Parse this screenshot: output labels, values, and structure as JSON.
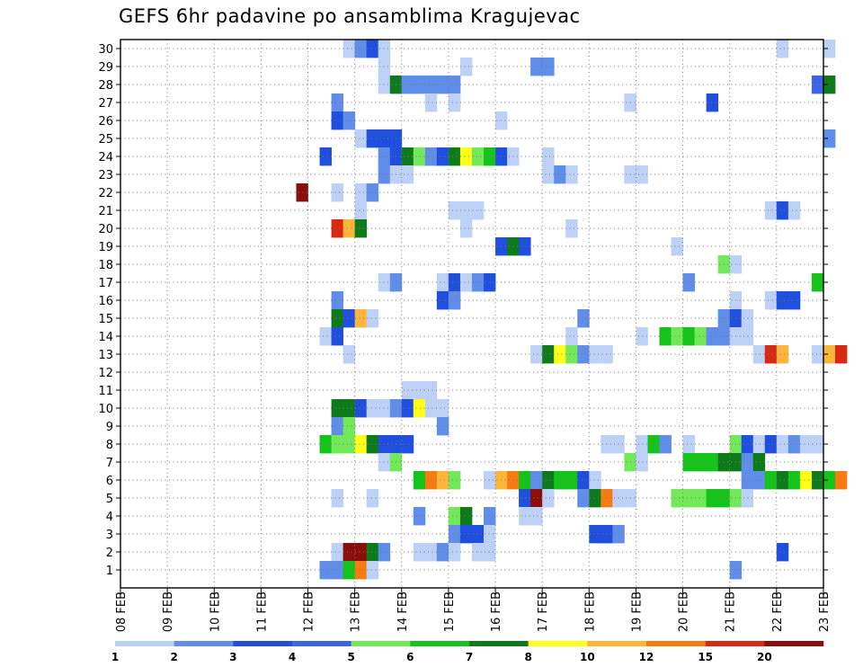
{
  "chart_data": {
    "type": "heatmap",
    "title": "GEFS 6hr padavine po ansamblima Kragujevac",
    "xlabel": "",
    "ylabel": "",
    "x_ticks": [
      "08 FEB",
      "09 FEB",
      "10 FEB",
      "11 FEB",
      "12 FEB",
      "13 FEB",
      "14 FEB",
      "15 FEB",
      "16 FEB",
      "17 FEB",
      "18 FEB",
      "19 FEB",
      "20 FEB",
      "21 FEB",
      "22 FEB",
      "23 FEB"
    ],
    "y_ticks": [
      "1",
      "2",
      "3",
      "4",
      "5",
      "6",
      "7",
      "8",
      "9",
      "10",
      "11",
      "12",
      "13",
      "14",
      "15",
      "16",
      "17",
      "18",
      "19",
      "20",
      "21",
      "22",
      "23",
      "24",
      "25",
      "26",
      "27",
      "28",
      "29",
      "30"
    ],
    "x_step_hours": 6,
    "ensemble_members": 30,
    "grid": true,
    "colorbar": {
      "position": "bottom",
      "labels": [
        "1",
        "2",
        "3",
        "4",
        "5",
        "6",
        "7",
        "8",
        "10",
        "12",
        "15",
        "20"
      ],
      "colors": [
        "#bdd0f6",
        "#5f8de8",
        "#1f4fdc",
        "#3a66e4",
        "#72e85a",
        "#16c31a",
        "#0f7a1c",
        "#ffff1a",
        "#ffb43c",
        "#f57c12",
        "#d62a12",
        "#8a0f0a"
      ]
    },
    "cells": [
      {
        "m": 30,
        "t": "2/12 18",
        "c": 0
      },
      {
        "m": 30,
        "t": "2/13 00",
        "c": 1
      },
      {
        "m": 30,
        "t": "2/13 06",
        "c": 2
      },
      {
        "m": 30,
        "t": "2/13 12",
        "c": 0
      },
      {
        "m": 30,
        "t": "2/22 00",
        "c": 0
      },
      {
        "m": 30,
        "t": "2/23 00",
        "c": 0
      },
      {
        "m": 29,
        "t": "2/13 12",
        "c": 0
      },
      {
        "m": 29,
        "t": "2/15 06",
        "c": 0
      },
      {
        "m": 29,
        "t": "2/16 18",
        "c": 1
      },
      {
        "m": 29,
        "t": "2/17 00",
        "c": 1
      },
      {
        "m": 28,
        "t": "2/13 12",
        "c": 0
      },
      {
        "m": 28,
        "t": "2/13 18",
        "c": 6
      },
      {
        "m": 28,
        "t": "2/14 00",
        "c": 1
      },
      {
        "m": 28,
        "t": "2/14 06",
        "c": 1
      },
      {
        "m": 28,
        "t": "2/14 12",
        "c": 1
      },
      {
        "m": 28,
        "t": "2/14 18",
        "c": 1
      },
      {
        "m": 28,
        "t": "2/15 00",
        "c": 1
      },
      {
        "m": 28,
        "t": "2/22 18",
        "c": 3
      },
      {
        "m": 28,
        "t": "2/23 00",
        "c": 6
      },
      {
        "m": 27,
        "t": "2/12 12",
        "c": 1
      },
      {
        "m": 27,
        "t": "2/14 12",
        "c": 0
      },
      {
        "m": 27,
        "t": "2/15 00",
        "c": 0
      },
      {
        "m": 27,
        "t": "2/18 18",
        "c": 0
      },
      {
        "m": 27,
        "t": "2/20 12",
        "c": 2
      },
      {
        "m": 26,
        "t": "2/12 12",
        "c": 2
      },
      {
        "m": 26,
        "t": "2/12 18",
        "c": 1
      },
      {
        "m": 26,
        "t": "2/16 00",
        "c": 0
      },
      {
        "m": 25,
        "t": "2/13 00",
        "c": 0
      },
      {
        "m": 25,
        "t": "2/13 06",
        "c": 2
      },
      {
        "m": 25,
        "t": "2/13 12",
        "c": 2
      },
      {
        "m": 25,
        "t": "2/13 18",
        "c": 2
      },
      {
        "m": 25,
        "t": "2/23 00",
        "c": 1
      },
      {
        "m": 24,
        "t": "2/12 06",
        "c": 2
      },
      {
        "m": 24,
        "t": "2/13 12",
        "c": 1
      },
      {
        "m": 24,
        "t": "2/13 18",
        "c": 2
      },
      {
        "m": 24,
        "t": "2/14 00",
        "c": 6
      },
      {
        "m": 24,
        "t": "2/14 06",
        "c": 4
      },
      {
        "m": 24,
        "t": "2/14 12",
        "c": 1
      },
      {
        "m": 24,
        "t": "2/14 18",
        "c": 2
      },
      {
        "m": 24,
        "t": "2/15 00",
        "c": 6
      },
      {
        "m": 24,
        "t": "2/15 06",
        "c": 7
      },
      {
        "m": 24,
        "t": "2/15 12",
        "c": 4
      },
      {
        "m": 24,
        "t": "2/15 18",
        "c": 5
      },
      {
        "m": 24,
        "t": "2/16 00",
        "c": 2
      },
      {
        "m": 24,
        "t": "2/16 06",
        "c": 0
      },
      {
        "m": 24,
        "t": "2/17 00",
        "c": 0
      },
      {
        "m": 23,
        "t": "2/13 12",
        "c": 1
      },
      {
        "m": 23,
        "t": "2/13 18",
        "c": 0
      },
      {
        "m": 23,
        "t": "2/14 00",
        "c": 0
      },
      {
        "m": 23,
        "t": "2/17 00",
        "c": 0
      },
      {
        "m": 23,
        "t": "2/17 06",
        "c": 1
      },
      {
        "m": 23,
        "t": "2/17 12",
        "c": 0
      },
      {
        "m": 23,
        "t": "2/18 18",
        "c": 0
      },
      {
        "m": 23,
        "t": "2/19 00",
        "c": 0
      },
      {
        "m": 22,
        "t": "2/11 18",
        "c": 11
      },
      {
        "m": 22,
        "t": "2/12 12",
        "c": 0
      },
      {
        "m": 22,
        "t": "2/13 00",
        "c": 0
      },
      {
        "m": 22,
        "t": "2/13 06",
        "c": 1
      },
      {
        "m": 21,
        "t": "2/13 00",
        "c": 0
      },
      {
        "m": 21,
        "t": "2/15 00",
        "c": 0
      },
      {
        "m": 21,
        "t": "2/15 06",
        "c": 0
      },
      {
        "m": 21,
        "t": "2/15 12",
        "c": 0
      },
      {
        "m": 21,
        "t": "2/21 18",
        "c": 0
      },
      {
        "m": 21,
        "t": "2/22 00",
        "c": 2
      },
      {
        "m": 21,
        "t": "2/22 06",
        "c": 0
      },
      {
        "m": 20,
        "t": "2/12 12",
        "c": 10
      },
      {
        "m": 20,
        "t": "2/12 18",
        "c": 8
      },
      {
        "m": 20,
        "t": "2/13 00",
        "c": 6
      },
      {
        "m": 20,
        "t": "2/15 06",
        "c": 0
      },
      {
        "m": 20,
        "t": "2/17 12",
        "c": 0
      },
      {
        "m": 19,
        "t": "2/16 00",
        "c": 2
      },
      {
        "m": 19,
        "t": "2/16 06",
        "c": 6
      },
      {
        "m": 19,
        "t": "2/16 12",
        "c": 2
      },
      {
        "m": 19,
        "t": "2/19 18",
        "c": 0
      },
      {
        "m": 18,
        "t": "2/20 18",
        "c": 4
      },
      {
        "m": 18,
        "t": "2/21 00",
        "c": 0
      },
      {
        "m": 17,
        "t": "2/13 12",
        "c": 0
      },
      {
        "m": 17,
        "t": "2/13 18",
        "c": 1
      },
      {
        "m": 17,
        "t": "2/14 18",
        "c": 0
      },
      {
        "m": 17,
        "t": "2/15 00",
        "c": 2
      },
      {
        "m": 17,
        "t": "2/15 06",
        "c": 0
      },
      {
        "m": 17,
        "t": "2/15 12",
        "c": 1
      },
      {
        "m": 17,
        "t": "2/15 18",
        "c": 2
      },
      {
        "m": 17,
        "t": "2/20 00",
        "c": 1
      },
      {
        "m": 17,
        "t": "2/22 18",
        "c": 5
      },
      {
        "m": 16,
        "t": "2/12 12",
        "c": 1
      },
      {
        "m": 16,
        "t": "2/14 18",
        "c": 2
      },
      {
        "m": 16,
        "t": "2/15 00",
        "c": 1
      },
      {
        "m": 16,
        "t": "2/21 00",
        "c": 0
      },
      {
        "m": 16,
        "t": "2/21 18",
        "c": 0
      },
      {
        "m": 16,
        "t": "2/22 00",
        "c": 2
      },
      {
        "m": 16,
        "t": "2/22 06",
        "c": 2
      },
      {
        "m": 15,
        "t": "2/12 12",
        "c": 6
      },
      {
        "m": 15,
        "t": "2/12 18",
        "c": 2
      },
      {
        "m": 15,
        "t": "2/13 00",
        "c": 8
      },
      {
        "m": 15,
        "t": "2/13 06",
        "c": 0
      },
      {
        "m": 15,
        "t": "2/17 18",
        "c": 1
      },
      {
        "m": 15,
        "t": "2/20 18",
        "c": 1
      },
      {
        "m": 15,
        "t": "2/21 00",
        "c": 2
      },
      {
        "m": 15,
        "t": "2/21 06",
        "c": 0
      },
      {
        "m": 14,
        "t": "2/12 06",
        "c": 0
      },
      {
        "m": 14,
        "t": "2/12 12",
        "c": 2
      },
      {
        "m": 14,
        "t": "2/17 12",
        "c": 0
      },
      {
        "m": 14,
        "t": "2/19 00",
        "c": 0
      },
      {
        "m": 14,
        "t": "2/19 12",
        "c": 5
      },
      {
        "m": 14,
        "t": "2/19 18",
        "c": 4
      },
      {
        "m": 14,
        "t": "2/20 00",
        "c": 5
      },
      {
        "m": 14,
        "t": "2/20 06",
        "c": 4
      },
      {
        "m": 14,
        "t": "2/20 12",
        "c": 1
      },
      {
        "m": 14,
        "t": "2/20 18",
        "c": 1
      },
      {
        "m": 14,
        "t": "2/21 00",
        "c": 0
      },
      {
        "m": 14,
        "t": "2/21 06",
        "c": 0
      },
      {
        "m": 13,
        "t": "2/12 18",
        "c": 0
      },
      {
        "m": 13,
        "t": "2/16 18",
        "c": 0
      },
      {
        "m": 13,
        "t": "2/17 00",
        "c": 6
      },
      {
        "m": 13,
        "t": "2/17 06",
        "c": 7
      },
      {
        "m": 13,
        "t": "2/17 12",
        "c": 4
      },
      {
        "m": 13,
        "t": "2/17 18",
        "c": 1
      },
      {
        "m": 13,
        "t": "2/18 00",
        "c": 0
      },
      {
        "m": 13,
        "t": "2/18 06",
        "c": 0
      },
      {
        "m": 13,
        "t": "2/21 12",
        "c": 0
      },
      {
        "m": 13,
        "t": "2/21 18",
        "c": 10
      },
      {
        "m": 13,
        "t": "2/22 00",
        "c": 8
      },
      {
        "m": 13,
        "t": "2/22 18",
        "c": 0
      },
      {
        "m": 13,
        "t": "2/23 00",
        "c": 8
      },
      {
        "m": 13,
        "t": "2/23 06",
        "c": 10
      },
      {
        "m": 11,
        "t": "2/14 00",
        "c": 0
      },
      {
        "m": 11,
        "t": "2/14 06",
        "c": 0
      },
      {
        "m": 11,
        "t": "2/14 12",
        "c": 0
      },
      {
        "m": 10,
        "t": "2/12 12",
        "c": 6
      },
      {
        "m": 10,
        "t": "2/12 18",
        "c": 6
      },
      {
        "m": 10,
        "t": "2/13 00",
        "c": 2
      },
      {
        "m": 10,
        "t": "2/13 06",
        "c": 0
      },
      {
        "m": 10,
        "t": "2/13 12",
        "c": 0
      },
      {
        "m": 10,
        "t": "2/13 18",
        "c": 1
      },
      {
        "m": 10,
        "t": "2/14 00",
        "c": 2
      },
      {
        "m": 10,
        "t": "2/14 06",
        "c": 7
      },
      {
        "m": 10,
        "t": "2/14 12",
        "c": 0
      },
      {
        "m": 10,
        "t": "2/14 18",
        "c": 0
      },
      {
        "m": 9,
        "t": "2/12 12",
        "c": 1
      },
      {
        "m": 9,
        "t": "2/12 18",
        "c": 4
      },
      {
        "m": 9,
        "t": "2/14 18",
        "c": 1
      },
      {
        "m": 8,
        "t": "2/12 06",
        "c": 5
      },
      {
        "m": 8,
        "t": "2/12 12",
        "c": 4
      },
      {
        "m": 8,
        "t": "2/12 18",
        "c": 4
      },
      {
        "m": 8,
        "t": "2/13 00",
        "c": 7
      },
      {
        "m": 8,
        "t": "2/13 06",
        "c": 6
      },
      {
        "m": 8,
        "t": "2/13 12",
        "c": 2
      },
      {
        "m": 8,
        "t": "2/13 18",
        "c": 2
      },
      {
        "m": 8,
        "t": "2/14 00",
        "c": 2
      },
      {
        "m": 8,
        "t": "2/18 06",
        "c": 0
      },
      {
        "m": 8,
        "t": "2/18 12",
        "c": 0
      },
      {
        "m": 8,
        "t": "2/19 00",
        "c": 0
      },
      {
        "m": 8,
        "t": "2/19 06",
        "c": 5
      },
      {
        "m": 8,
        "t": "2/19 12",
        "c": 1
      },
      {
        "m": 8,
        "t": "2/20 00",
        "c": 0
      },
      {
        "m": 8,
        "t": "2/21 00",
        "c": 4
      },
      {
        "m": 8,
        "t": "2/21 06",
        "c": 2
      },
      {
        "m": 8,
        "t": "2/21 12",
        "c": 0
      },
      {
        "m": 8,
        "t": "2/21 18",
        "c": 2
      },
      {
        "m": 8,
        "t": "2/22 00",
        "c": 0
      },
      {
        "m": 8,
        "t": "2/22 06",
        "c": 1
      },
      {
        "m": 8,
        "t": "2/22 12",
        "c": 0
      },
      {
        "m": 8,
        "t": "2/22 18",
        "c": 0
      },
      {
        "m": 7,
        "t": "2/13 12",
        "c": 0
      },
      {
        "m": 7,
        "t": "2/13 18",
        "c": 4
      },
      {
        "m": 7,
        "t": "2/18 18",
        "c": 4
      },
      {
        "m": 7,
        "t": "2/19 00",
        "c": 0
      },
      {
        "m": 7,
        "t": "2/20 00",
        "c": 5
      },
      {
        "m": 7,
        "t": "2/20 06",
        "c": 5
      },
      {
        "m": 7,
        "t": "2/20 12",
        "c": 5
      },
      {
        "m": 7,
        "t": "2/20 18",
        "c": 6
      },
      {
        "m": 7,
        "t": "2/21 00",
        "c": 6
      },
      {
        "m": 7,
        "t": "2/21 06",
        "c": 1
      },
      {
        "m": 7,
        "t": "2/21 12",
        "c": 6
      },
      {
        "m": 6,
        "t": "2/14 06",
        "c": 5
      },
      {
        "m": 6,
        "t": "2/14 12",
        "c": 9
      },
      {
        "m": 6,
        "t": "2/14 18",
        "c": 8
      },
      {
        "m": 6,
        "t": "2/15 00",
        "c": 4
      },
      {
        "m": 6,
        "t": "2/15 18",
        "c": 0
      },
      {
        "m": 6,
        "t": "2/16 00",
        "c": 8
      },
      {
        "m": 6,
        "t": "2/16 06",
        "c": 9
      },
      {
        "m": 6,
        "t": "2/16 12",
        "c": 5
      },
      {
        "m": 6,
        "t": "2/16 18",
        "c": 1
      },
      {
        "m": 6,
        "t": "2/17 00",
        "c": 6
      },
      {
        "m": 6,
        "t": "2/17 06",
        "c": 5
      },
      {
        "m": 6,
        "t": "2/17 12",
        "c": 5
      },
      {
        "m": 6,
        "t": "2/17 18",
        "c": 2
      },
      {
        "m": 6,
        "t": "2/18 00",
        "c": 0
      },
      {
        "m": 6,
        "t": "2/21 06",
        "c": 1
      },
      {
        "m": 6,
        "t": "2/21 12",
        "c": 1
      },
      {
        "m": 6,
        "t": "2/21 18",
        "c": 5
      },
      {
        "m": 6,
        "t": "2/22 00",
        "c": 6
      },
      {
        "m": 6,
        "t": "2/22 06",
        "c": 5
      },
      {
        "m": 6,
        "t": "2/22 12",
        "c": 7
      },
      {
        "m": 6,
        "t": "2/22 18",
        "c": 6
      },
      {
        "m": 6,
        "t": "2/23 00",
        "c": 5
      },
      {
        "m": 6,
        "t": "2/23 06",
        "c": 9
      },
      {
        "m": 5,
        "t": "2/12 12",
        "c": 0
      },
      {
        "m": 5,
        "t": "2/13 06",
        "c": 0
      },
      {
        "m": 5,
        "t": "2/16 12",
        "c": 2
      },
      {
        "m": 5,
        "t": "2/16 18",
        "c": 11
      },
      {
        "m": 5,
        "t": "2/17 00",
        "c": 0
      },
      {
        "m": 5,
        "t": "2/17 18",
        "c": 1
      },
      {
        "m": 5,
        "t": "2/18 00",
        "c": 6
      },
      {
        "m": 5,
        "t": "2/18 06",
        "c": 9
      },
      {
        "m": 5,
        "t": "2/18 12",
        "c": 0
      },
      {
        "m": 5,
        "t": "2/18 18",
        "c": 0
      },
      {
        "m": 5,
        "t": "2/19 18",
        "c": 4
      },
      {
        "m": 5,
        "t": "2/20 00",
        "c": 4
      },
      {
        "m": 5,
        "t": "2/20 06",
        "c": 4
      },
      {
        "m": 5,
        "t": "2/20 12",
        "c": 5
      },
      {
        "m": 5,
        "t": "2/20 18",
        "c": 5
      },
      {
        "m": 5,
        "t": "2/21 00",
        "c": 4
      },
      {
        "m": 5,
        "t": "2/21 06",
        "c": 0
      },
      {
        "m": 4,
        "t": "2/14 06",
        "c": 1
      },
      {
        "m": 4,
        "t": "2/15 00",
        "c": 4
      },
      {
        "m": 4,
        "t": "2/15 06",
        "c": 6
      },
      {
        "m": 4,
        "t": "2/15 18",
        "c": 1
      },
      {
        "m": 4,
        "t": "2/16 12",
        "c": 0
      },
      {
        "m": 4,
        "t": "2/16 18",
        "c": 0
      },
      {
        "m": 3,
        "t": "2/15 00",
        "c": 1
      },
      {
        "m": 3,
        "t": "2/15 06",
        "c": 2
      },
      {
        "m": 3,
        "t": "2/15 12",
        "c": 2
      },
      {
        "m": 3,
        "t": "2/15 18",
        "c": 0
      },
      {
        "m": 3,
        "t": "2/18 00",
        "c": 2
      },
      {
        "m": 3,
        "t": "2/18 06",
        "c": 2
      },
      {
        "m": 3,
        "t": "2/18 12",
        "c": 1
      },
      {
        "m": 2,
        "t": "2/12 12",
        "c": 0
      },
      {
        "m": 2,
        "t": "2/12 18",
        "c": 11
      },
      {
        "m": 2,
        "t": "2/13 00",
        "c": 11
      },
      {
        "m": 2,
        "t": "2/13 06",
        "c": 6
      },
      {
        "m": 2,
        "t": "2/13 12",
        "c": 1
      },
      {
        "m": 2,
        "t": "2/14 06",
        "c": 0
      },
      {
        "m": 2,
        "t": "2/14 12",
        "c": 0
      },
      {
        "m": 2,
        "t": "2/14 18",
        "c": 1
      },
      {
        "m": 2,
        "t": "2/15 00",
        "c": 0
      },
      {
        "m": 2,
        "t": "2/15 12",
        "c": 0
      },
      {
        "m": 2,
        "t": "2/15 18",
        "c": 0
      },
      {
        "m": 2,
        "t": "2/22 00",
        "c": 2
      },
      {
        "m": 1,
        "t": "2/12 06",
        "c": 1
      },
      {
        "m": 1,
        "t": "2/12 12",
        "c": 1
      },
      {
        "m": 1,
        "t": "2/12 18",
        "c": 5
      },
      {
        "m": 1,
        "t": "2/13 00",
        "c": 9
      },
      {
        "m": 1,
        "t": "2/13 06",
        "c": 0
      },
      {
        "m": 1,
        "t": "2/21 00",
        "c": 1
      }
    ]
  }
}
